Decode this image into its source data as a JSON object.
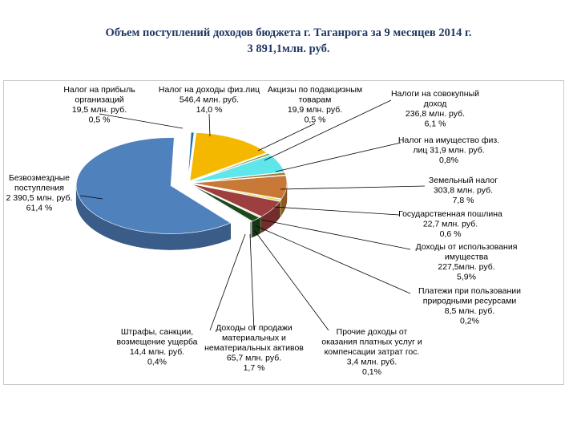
{
  "header": {
    "title_line1": "Объем поступлений доходов бюджета г. Таганрога за 9 месяцев 2014 г.",
    "title_line2": "3 891,1млн. руб."
  },
  "chart_data": {
    "type": "pie",
    "title": "Объем поступлений доходов бюджета г. Таганрога за 9 месяцев 2014 г. 3 891,1млн. руб.",
    "total": 3891.1,
    "unit": "млн. руб.",
    "style": "3d-exploded",
    "slices": [
      {
        "name": "Налог на прибыль организаций",
        "value": 19.5,
        "percent": "0,5 %",
        "color": "#1f6fb2",
        "label_lines": [
          "Налог на прибыль",
          "организаций",
          "19,5 млн. руб.",
          "0,5 %"
        ]
      },
      {
        "name": "Налог на доходы физ.лиц",
        "value": 546.4,
        "percent": "14,0 %",
        "color": "#f5b800",
        "label_lines": [
          "Налог на доходы физ.лиц",
          "546,4 млн. руб.",
          "14,0 %"
        ]
      },
      {
        "name": "Акцизы по подакцизным товарам",
        "value": 19.9,
        "percent": "0,5 %",
        "color": "#7a8a3a",
        "label_lines": [
          "Акцизы по подакцизным",
          "товарам",
          "19,9 млн. руб.",
          "0,5 %"
        ]
      },
      {
        "name": "Налоги на совокупный доход",
        "value": 236.8,
        "percent": "6,1 %",
        "color": "#5ee6ea",
        "label_lines": [
          "Налоги на совокупный",
          "доход",
          "236,8 млн. руб.",
          "6,1 %"
        ]
      },
      {
        "name": "Налог на имущество физ. лиц",
        "value": 31.9,
        "percent": "0,8%",
        "color": "#9c7b3c",
        "label_lines": [
          "Налог на имущество физ.",
          "лиц 31,9 млн. руб.",
          "0,8%"
        ]
      },
      {
        "name": "Земельный налог",
        "value": 303.8,
        "percent": "7,8 %",
        "color": "#c87937",
        "label_lines": [
          "Земельный налог",
          "303,8 млн. руб.",
          "7,8 %"
        ]
      },
      {
        "name": "Государственная пошлина",
        "value": 22.7,
        "percent": "0,6 %",
        "color": "#d9d94a",
        "label_lines": [
          "Государственная пошлина",
          "22,7 млн. руб.",
          "0,6 %"
        ]
      },
      {
        "name": "Доходы от использования имущества",
        "value": 227.5,
        "percent": "5,9%",
        "color": "#9e3f3f",
        "label_lines": [
          "Доходы от использования",
          "имущества",
          "227,5млн. руб.",
          "5,9%"
        ]
      },
      {
        "name": "Платежи при пользовании природными ресурсами",
        "value": 8.5,
        "percent": "0,2%",
        "color": "#7b9c3a",
        "label_lines": [
          "Платежи при пользовании",
          "природными ресурсами",
          "8,5 млн. руб.",
          "0,2%"
        ]
      },
      {
        "name": "Прочие доходы от оказания платных услуг и компенсации затрат гос.",
        "value": 3.4,
        "percent": "0,1%",
        "color": "#5a6e3a",
        "label_lines": [
          "Прочие доходы от",
          "оказания платных услуг и",
          "компенсации затрат гос.",
          "3,4 млн. руб.",
          "0,1%"
        ]
      },
      {
        "name": "Доходы от продажи материальных и нематериальных активов",
        "value": 65.7,
        "percent": "1,7 %",
        "color": "#1d4a1d",
        "label_lines": [
          "Доходы от продажи",
          "материальных и",
          "нематериальных активов",
          "65,7 млн. руб.",
          "1,7 %"
        ]
      },
      {
        "name": "Штрафы, санкции, возмещение ущерба",
        "value": 14.4,
        "percent": "0,4%",
        "color": "#e8e8e8",
        "label_lines": [
          "Штрафы, санкции,",
          "возмещение ущерба",
          "14,4 млн. руб.",
          "0,4%"
        ]
      },
      {
        "name": "Безвозмездные поступления",
        "value": 2390.5,
        "percent": "61,4 %",
        "color": "#4f81bd",
        "label_lines": [
          "Безвозмездные",
          "поступления",
          "2 390,5 млн. руб.",
          "61,4 %"
        ]
      }
    ]
  }
}
